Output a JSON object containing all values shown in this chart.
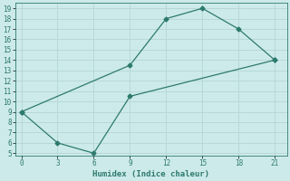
{
  "xlabel": "Humidex (Indice chaleur)",
  "x_line1": [
    0,
    9,
    12,
    15,
    18,
    21
  ],
  "y_line1": [
    9,
    13.5,
    18,
    19,
    17,
    14
  ],
  "x_line2": [
    0,
    3,
    6,
    9,
    21
  ],
  "y_line2": [
    9,
    6,
    5,
    10.5,
    14
  ],
  "line_color": "#2d7a6e",
  "bg_color": "#cdeaea",
  "grid_color": "#b8d8d8",
  "xlim": [
    -0.5,
    22
  ],
  "ylim": [
    4.8,
    19.5
  ],
  "xticks": [
    0,
    3,
    6,
    9,
    12,
    15,
    18,
    21
  ],
  "yticks": [
    5,
    6,
    7,
    8,
    9,
    10,
    11,
    12,
    13,
    14,
    15,
    16,
    17,
    18,
    19
  ]
}
